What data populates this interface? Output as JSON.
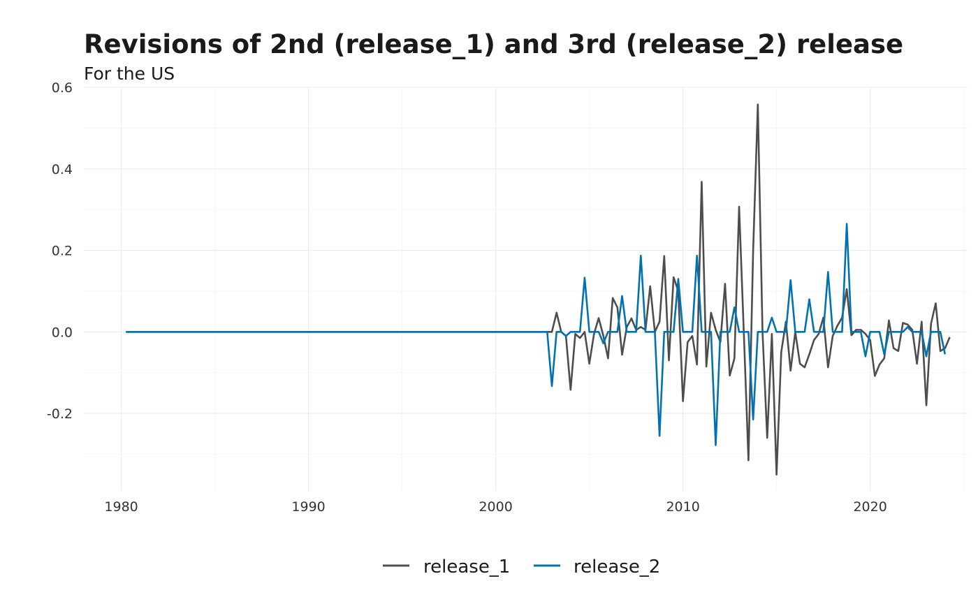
{
  "chart_data": {
    "type": "line",
    "title": "Revisions of 2nd (release_1) and 3rd (release_2) release",
    "subtitle": "For the US",
    "xlabel": "",
    "ylabel": "",
    "xlim": [
      1978,
      2025.2
    ],
    "ylim": [
      -0.39,
      0.6
    ],
    "x_ticks": [
      1980,
      1990,
      2000,
      2010,
      2020
    ],
    "x_tick_labels": [
      "1980",
      "1990",
      "2000",
      "2010",
      "2020"
    ],
    "y_ticks": [
      -0.2,
      0.0,
      0.2,
      0.4,
      0.6
    ],
    "y_tick_labels": [
      "-0.2",
      "0.0",
      "0.2",
      "0.4",
      "0.6"
    ],
    "grid": true,
    "legend_position": "bottom",
    "series": [
      {
        "name": "release_1",
        "color": "#4d4d4d",
        "points": [
          [
            1980.25,
            0.0
          ],
          [
            2002.75,
            0.0
          ],
          [
            2003.0,
            0.0
          ],
          [
            2003.25,
            0.047
          ],
          [
            2003.5,
            0.0
          ],
          [
            2003.75,
            -0.01
          ],
          [
            2004.0,
            -0.142
          ],
          [
            2004.25,
            -0.005
          ],
          [
            2004.5,
            -0.015
          ],
          [
            2004.75,
            0.0
          ],
          [
            2005.0,
            -0.078
          ],
          [
            2005.25,
            -0.005
          ],
          [
            2005.5,
            0.034
          ],
          [
            2005.75,
            -0.01
          ],
          [
            2006.0,
            -0.065
          ],
          [
            2006.25,
            0.083
          ],
          [
            2006.5,
            0.06
          ],
          [
            2006.75,
            -0.056
          ],
          [
            2007.0,
            0.012
          ],
          [
            2007.25,
            0.033
          ],
          [
            2007.5,
            0.005
          ],
          [
            2007.75,
            0.012
          ],
          [
            2008.0,
            0.005
          ],
          [
            2008.25,
            0.112
          ],
          [
            2008.5,
            0.0
          ],
          [
            2008.75,
            0.025
          ],
          [
            2009.0,
            0.186
          ],
          [
            2009.25,
            -0.07
          ],
          [
            2009.5,
            0.134
          ],
          [
            2009.75,
            0.1
          ],
          [
            2010.0,
            -0.17
          ],
          [
            2010.25,
            -0.025
          ],
          [
            2010.5,
            -0.01
          ],
          [
            2010.75,
            -0.08
          ],
          [
            2011.0,
            0.368
          ],
          [
            2011.25,
            -0.085
          ],
          [
            2011.5,
            0.047
          ],
          [
            2011.75,
            0.005
          ],
          [
            2012.0,
            -0.025
          ],
          [
            2012.25,
            0.118
          ],
          [
            2012.5,
            -0.107
          ],
          [
            2012.75,
            -0.065
          ],
          [
            2013.0,
            0.307
          ],
          [
            2013.25,
            0.0
          ],
          [
            2013.5,
            -0.315
          ],
          [
            2013.75,
            0.2
          ],
          [
            2014.0,
            0.558
          ],
          [
            2014.25,
            0.0
          ],
          [
            2014.5,
            -0.26
          ],
          [
            2014.75,
            -0.005
          ],
          [
            2015.0,
            -0.35
          ],
          [
            2015.25,
            -0.05
          ],
          [
            2015.5,
            0.025
          ],
          [
            2015.75,
            -0.095
          ],
          [
            2016.0,
            0.0
          ],
          [
            2016.25,
            -0.078
          ],
          [
            2016.5,
            -0.087
          ],
          [
            2016.75,
            -0.055
          ],
          [
            2017.0,
            -0.02
          ],
          [
            2017.25,
            -0.005
          ],
          [
            2017.5,
            0.035
          ],
          [
            2017.75,
            -0.087
          ],
          [
            2018.0,
            -0.01
          ],
          [
            2018.25,
            0.015
          ],
          [
            2018.5,
            0.035
          ],
          [
            2018.75,
            0.105
          ],
          [
            2019.0,
            -0.008
          ],
          [
            2019.25,
            0.005
          ],
          [
            2019.5,
            0.005
          ],
          [
            2019.75,
            -0.005
          ],
          [
            2020.0,
            -0.02
          ],
          [
            2020.25,
            -0.108
          ],
          [
            2020.5,
            -0.08
          ],
          [
            2020.75,
            -0.065
          ],
          [
            2021.0,
            0.028
          ],
          [
            2021.25,
            -0.04
          ],
          [
            2021.5,
            -0.047
          ],
          [
            2021.75,
            0.022
          ],
          [
            2022.0,
            0.018
          ],
          [
            2022.25,
            0.005
          ],
          [
            2022.5,
            -0.078
          ],
          [
            2022.75,
            0.025
          ],
          [
            2023.0,
            -0.18
          ],
          [
            2023.25,
            0.02
          ],
          [
            2023.5,
            0.07
          ],
          [
            2023.75,
            -0.047
          ],
          [
            2024.0,
            -0.04
          ],
          [
            2024.25,
            -0.013
          ]
        ]
      },
      {
        "name": "release_2",
        "color": "#0072b2",
        "points": [
          [
            1980.25,
            0.0
          ],
          [
            2002.75,
            0.0
          ],
          [
            2003.0,
            -0.133
          ],
          [
            2003.25,
            0.0
          ],
          [
            2003.5,
            0.0
          ],
          [
            2003.75,
            -0.01
          ],
          [
            2004.0,
            0.0
          ],
          [
            2004.25,
            0.0
          ],
          [
            2004.5,
            0.0
          ],
          [
            2004.75,
            0.133
          ],
          [
            2005.0,
            0.0
          ],
          [
            2005.25,
            0.0
          ],
          [
            2005.5,
            0.0
          ],
          [
            2005.75,
            -0.028
          ],
          [
            2006.0,
            0.0
          ],
          [
            2006.25,
            0.0
          ],
          [
            2006.5,
            0.0
          ],
          [
            2006.75,
            0.088
          ],
          [
            2007.0,
            0.0
          ],
          [
            2007.25,
            0.0
          ],
          [
            2007.5,
            0.0
          ],
          [
            2007.75,
            0.187
          ],
          [
            2008.0,
            0.0
          ],
          [
            2008.25,
            0.0
          ],
          [
            2008.5,
            0.0
          ],
          [
            2008.75,
            -0.255
          ],
          [
            2009.0,
            0.0
          ],
          [
            2009.25,
            0.0
          ],
          [
            2009.5,
            0.0
          ],
          [
            2009.75,
            0.13
          ],
          [
            2010.0,
            0.0
          ],
          [
            2010.25,
            0.0
          ],
          [
            2010.5,
            0.0
          ],
          [
            2010.75,
            0.187
          ],
          [
            2011.0,
            0.0
          ],
          [
            2011.25,
            0.0
          ],
          [
            2011.5,
            0.0
          ],
          [
            2011.75,
            -0.278
          ],
          [
            2012.0,
            0.0
          ],
          [
            2012.25,
            0.0
          ],
          [
            2012.5,
            0.0
          ],
          [
            2012.75,
            0.06
          ],
          [
            2013.0,
            0.0
          ],
          [
            2013.25,
            0.0
          ],
          [
            2013.5,
            0.0
          ],
          [
            2013.75,
            -0.215
          ],
          [
            2014.0,
            0.0
          ],
          [
            2014.25,
            0.0
          ],
          [
            2014.5,
            0.0
          ],
          [
            2014.75,
            0.035
          ],
          [
            2015.0,
            0.0
          ],
          [
            2015.25,
            0.0
          ],
          [
            2015.5,
            0.0
          ],
          [
            2015.75,
            0.127
          ],
          [
            2016.0,
            0.0
          ],
          [
            2016.25,
            0.0
          ],
          [
            2016.5,
            0.0
          ],
          [
            2016.75,
            0.08
          ],
          [
            2017.0,
            0.0
          ],
          [
            2017.25,
            0.0
          ],
          [
            2017.5,
            0.0
          ],
          [
            2017.75,
            0.147
          ],
          [
            2018.0,
            0.0
          ],
          [
            2018.25,
            0.0
          ],
          [
            2018.5,
            0.0
          ],
          [
            2018.75,
            0.265
          ],
          [
            2019.0,
            0.0
          ],
          [
            2019.25,
            0.0
          ],
          [
            2019.5,
            0.0
          ],
          [
            2019.75,
            -0.06
          ],
          [
            2020.0,
            0.0
          ],
          [
            2020.25,
            0.0
          ],
          [
            2020.5,
            0.0
          ],
          [
            2020.75,
            -0.055
          ],
          [
            2021.0,
            0.0
          ],
          [
            2021.25,
            0.0
          ],
          [
            2021.5,
            0.0
          ],
          [
            2021.75,
            0.0
          ],
          [
            2022.0,
            0.012
          ],
          [
            2022.25,
            0.0
          ],
          [
            2022.5,
            0.0
          ],
          [
            2022.75,
            0.0
          ],
          [
            2023.0,
            -0.06
          ],
          [
            2023.25,
            0.0
          ],
          [
            2023.5,
            0.0
          ],
          [
            2023.75,
            0.0
          ],
          [
            2024.0,
            -0.055
          ]
        ]
      }
    ]
  }
}
